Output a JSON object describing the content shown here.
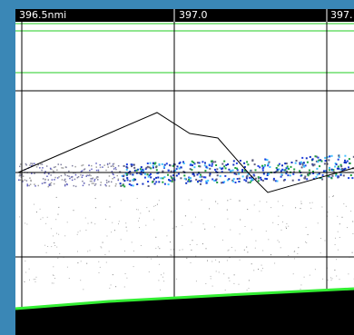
{
  "axis_labels": [
    "396.5nmi",
    "397.0",
    "397."
  ]
}
